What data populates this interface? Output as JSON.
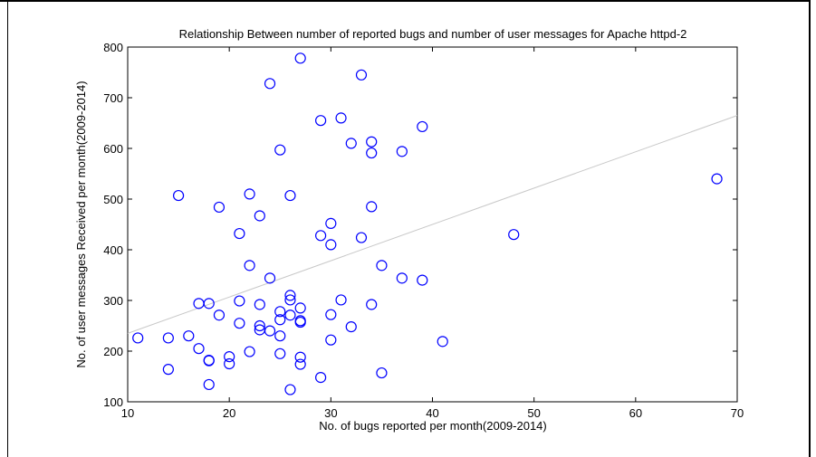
{
  "chart_data": {
    "type": "scatter",
    "title": "Relationship Between number of reported bugs and number of user messages for Apache httpd-2",
    "xlabel": "No. of bugs reported per month(2009-2014)",
    "ylabel": "No. of user messages Received per month(2009-2014)",
    "xlim": [
      10,
      70
    ],
    "ylim": [
      100,
      800
    ],
    "xticks": [
      10,
      20,
      30,
      40,
      50,
      60,
      70
    ],
    "yticks": [
      100,
      200,
      300,
      400,
      500,
      600,
      700,
      800
    ],
    "grid": false,
    "marker_color": "#0000ff",
    "trendline_color": "#c8c8c8",
    "trendline": {
      "x": [
        10,
        70
      ],
      "y": [
        235,
        665
      ]
    },
    "points": [
      [
        11,
        226
      ],
      [
        14,
        226
      ],
      [
        14,
        164
      ],
      [
        15,
        507
      ],
      [
        16,
        230
      ],
      [
        17,
        294
      ],
      [
        17,
        205
      ],
      [
        18,
        294
      ],
      [
        18,
        182
      ],
      [
        18,
        181
      ],
      [
        18,
        134
      ],
      [
        19,
        484
      ],
      [
        19,
        271
      ],
      [
        20,
        189
      ],
      [
        20,
        175
      ],
      [
        21,
        432
      ],
      [
        21,
        299
      ],
      [
        21,
        255
      ],
      [
        22,
        510
      ],
      [
        22,
        369
      ],
      [
        22,
        199
      ],
      [
        23,
        467
      ],
      [
        23,
        292
      ],
      [
        23,
        250
      ],
      [
        23,
        242
      ],
      [
        24,
        728
      ],
      [
        24,
        344
      ],
      [
        24,
        240
      ],
      [
        25,
        597
      ],
      [
        25,
        278
      ],
      [
        25,
        262
      ],
      [
        25,
        230
      ],
      [
        25,
        195
      ],
      [
        26,
        507
      ],
      [
        26,
        310
      ],
      [
        26,
        301
      ],
      [
        26,
        271
      ],
      [
        26,
        124
      ],
      [
        27,
        778
      ],
      [
        27,
        285
      ],
      [
        27,
        260
      ],
      [
        27,
        257
      ],
      [
        27,
        188
      ],
      [
        27,
        174
      ],
      [
        29,
        655
      ],
      [
        29,
        428
      ],
      [
        29,
        148
      ],
      [
        30,
        452
      ],
      [
        30,
        410
      ],
      [
        30,
        272
      ],
      [
        30,
        222
      ],
      [
        31,
        660
      ],
      [
        31,
        301
      ],
      [
        32,
        610
      ],
      [
        32,
        248
      ],
      [
        33,
        745
      ],
      [
        33,
        424
      ],
      [
        34,
        613
      ],
      [
        34,
        591
      ],
      [
        34,
        485
      ],
      [
        34,
        292
      ],
      [
        35,
        369
      ],
      [
        35,
        157
      ],
      [
        37,
        594
      ],
      [
        37,
        344
      ],
      [
        39,
        643
      ],
      [
        39,
        340
      ],
      [
        41,
        219
      ],
      [
        48,
        430
      ],
      [
        68,
        540
      ]
    ]
  }
}
